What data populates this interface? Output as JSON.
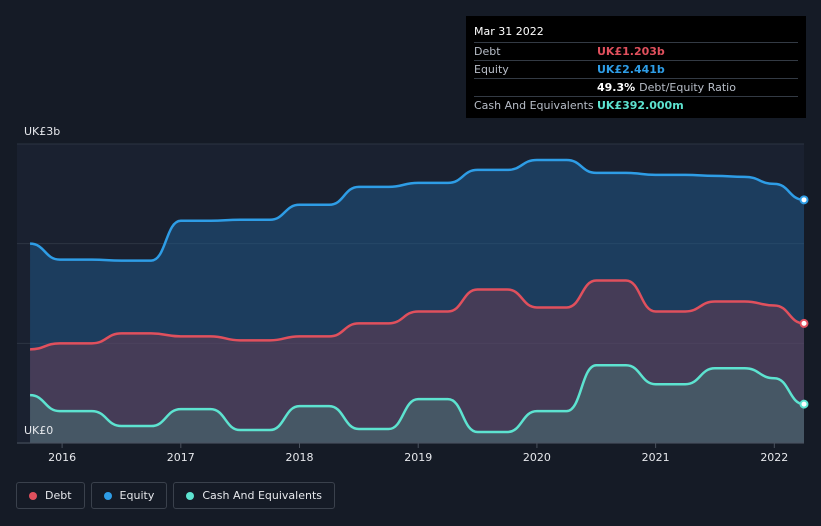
{
  "tooltip": {
    "date": "Mar 31 2022",
    "rows": [
      {
        "label": "Debt",
        "value": "UK£1.203b",
        "color": "#e0505d"
      },
      {
        "label": "Equity",
        "value": "UK£2.441b",
        "color": "#2e9de6"
      },
      {
        "label": "",
        "value": "49.3%",
        "suffix": "Debt/Equity Ratio",
        "color": "#ffffff"
      },
      {
        "label": "Cash And Equivalents",
        "value": "UK£392.000m",
        "color": "#5de3d0"
      }
    ]
  },
  "legend": [
    {
      "label": "Debt",
      "color": "#e0505d"
    },
    {
      "label": "Equity",
      "color": "#2e9de6"
    },
    {
      "label": "Cash And Equivalents",
      "color": "#5de3d0"
    }
  ],
  "chart_data": {
    "type": "area",
    "y_top_label": "UK£3b",
    "y_bottom_label": "UK£0",
    "ylim": [
      0,
      3
    ],
    "xlim": [
      2015.62,
      2022.25
    ],
    "x_ticks": [
      2016,
      2017,
      2018,
      2019,
      2020,
      2021,
      2022
    ],
    "x_tick_labels": [
      "2016",
      "2017",
      "2018",
      "2019",
      "2020",
      "2021",
      "2022"
    ],
    "grid": true,
    "series": [
      {
        "name": "Equity",
        "color": "#2e9de6",
        "x": [
          2015.73,
          2015.98,
          2016.25,
          2016.5,
          2016.75,
          2017.0,
          2017.25,
          2017.5,
          2017.75,
          2018.0,
          2018.25,
          2018.5,
          2018.75,
          2019.0,
          2019.25,
          2019.5,
          2019.75,
          2020.0,
          2020.25,
          2020.5,
          2020.75,
          2021.0,
          2021.25,
          2021.5,
          2021.75,
          2022.0,
          2022.25
        ],
        "y": [
          2.0,
          1.84,
          1.84,
          1.83,
          1.83,
          2.23,
          2.23,
          2.24,
          2.24,
          2.39,
          2.39,
          2.57,
          2.57,
          2.61,
          2.61,
          2.74,
          2.74,
          2.84,
          2.84,
          2.71,
          2.71,
          2.69,
          2.69,
          2.68,
          2.67,
          2.6,
          2.44
        ]
      },
      {
        "name": "Debt",
        "color": "#e0505d",
        "x": [
          2015.73,
          2015.98,
          2016.25,
          2016.5,
          2016.75,
          2017.0,
          2017.25,
          2017.5,
          2017.75,
          2018.0,
          2018.25,
          2018.5,
          2018.75,
          2019.0,
          2019.25,
          2019.5,
          2019.75,
          2020.0,
          2020.25,
          2020.5,
          2020.75,
          2021.0,
          2021.25,
          2021.5,
          2021.75,
          2022.0,
          2022.25
        ],
        "y": [
          0.94,
          1.0,
          1.0,
          1.1,
          1.1,
          1.07,
          1.07,
          1.03,
          1.03,
          1.07,
          1.07,
          1.2,
          1.2,
          1.32,
          1.32,
          1.54,
          1.54,
          1.36,
          1.36,
          1.63,
          1.63,
          1.32,
          1.32,
          1.42,
          1.42,
          1.38,
          1.2
        ]
      },
      {
        "name": "Cash And Equivalents",
        "color": "#5de3d0",
        "x": [
          2015.73,
          2015.98,
          2016.25,
          2016.5,
          2016.75,
          2017.0,
          2017.25,
          2017.5,
          2017.75,
          2018.0,
          2018.25,
          2018.5,
          2018.75,
          2019.0,
          2019.25,
          2019.5,
          2019.75,
          2020.0,
          2020.25,
          2020.5,
          2020.75,
          2021.0,
          2021.25,
          2021.5,
          2021.75,
          2022.0,
          2022.25
        ],
        "y": [
          0.48,
          0.32,
          0.32,
          0.17,
          0.17,
          0.34,
          0.34,
          0.13,
          0.13,
          0.37,
          0.37,
          0.14,
          0.14,
          0.44,
          0.44,
          0.11,
          0.11,
          0.32,
          0.32,
          0.78,
          0.78,
          0.59,
          0.59,
          0.75,
          0.75,
          0.65,
          0.39
        ]
      }
    ]
  }
}
